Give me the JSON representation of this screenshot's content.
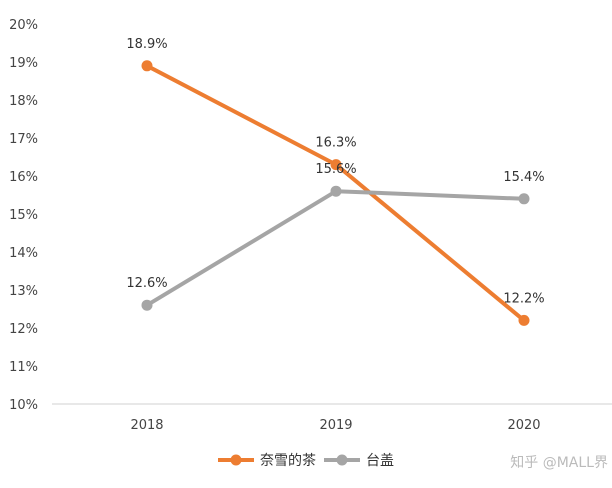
{
  "chart_data": {
    "type": "line",
    "categories": [
      "2018",
      "2019",
      "2020"
    ],
    "series": [
      {
        "name": "奈雪的茶",
        "values": [
          18.9,
          16.3,
          12.2
        ],
        "labels": [
          "18.9%",
          "16.3%",
          "12.2%"
        ],
        "color": "#ED7D31"
      },
      {
        "name": "台盖",
        "values": [
          12.6,
          15.6,
          15.4
        ],
        "labels": [
          "12.6%",
          "15.6%",
          "15.4%"
        ],
        "color": "#A5A5A5"
      }
    ],
    "y_ticks": [
      "10%",
      "11%",
      "12%",
      "13%",
      "14%",
      "15%",
      "16%",
      "17%",
      "18%",
      "19%",
      "20%"
    ],
    "ylim": [
      10,
      20
    ],
    "grid": false,
    "legend_position": "bottom"
  },
  "watermark": "知乎 @MALL界"
}
